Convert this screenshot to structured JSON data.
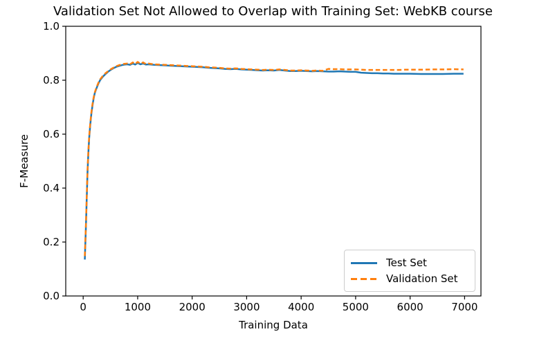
{
  "chart_data": {
    "type": "line",
    "title": "Validation Set Not Allowed to Overlap with Training Set: WebKB course",
    "xlabel": "Training Data",
    "ylabel": "F-Measure",
    "xlim": [
      -320,
      7300
    ],
    "ylim": [
      0.0,
      1.0
    ],
    "xticks": [
      0,
      1000,
      2000,
      3000,
      4000,
      5000,
      6000,
      7000
    ],
    "xtick_labels": [
      "0",
      "1000",
      "2000",
      "3000",
      "4000",
      "5000",
      "6000",
      "7000"
    ],
    "yticks": [
      0.0,
      0.2,
      0.4,
      0.6,
      0.8,
      1.0
    ],
    "ytick_labels": [
      "0.0",
      "0.2",
      "0.4",
      "0.6",
      "0.8",
      "1.0"
    ],
    "grid": false,
    "axis_color": "#000000",
    "legend": {
      "position": "lower right",
      "entries": [
        {
          "label": "Test Set",
          "color": "#1f77b4",
          "style": "solid"
        },
        {
          "label": "Validation Set",
          "color": "#ff7f0e",
          "style": "dashed"
        }
      ]
    },
    "series": [
      {
        "name": "Test Set",
        "color": "#1f77b4",
        "style": "solid",
        "points": [
          [
            30,
            0.135
          ],
          [
            50,
            0.255
          ],
          [
            65,
            0.36
          ],
          [
            80,
            0.46
          ],
          [
            95,
            0.53
          ],
          [
            110,
            0.585
          ],
          [
            130,
            0.635
          ],
          [
            150,
            0.675
          ],
          [
            170,
            0.705
          ],
          [
            190,
            0.73
          ],
          [
            210,
            0.75
          ],
          [
            235,
            0.765
          ],
          [
            260,
            0.778
          ],
          [
            285,
            0.79
          ],
          [
            310,
            0.8
          ],
          [
            360,
            0.813
          ],
          [
            410,
            0.823
          ],
          [
            460,
            0.832
          ],
          [
            510,
            0.839
          ],
          [
            560,
            0.845
          ],
          [
            610,
            0.85
          ],
          [
            660,
            0.853
          ],
          [
            710,
            0.856
          ],
          [
            760,
            0.858
          ],
          [
            810,
            0.859
          ],
          [
            860,
            0.857
          ],
          [
            910,
            0.862
          ],
          [
            955,
            0.858
          ],
          [
            1000,
            0.864
          ],
          [
            1050,
            0.859
          ],
          [
            1100,
            0.862
          ],
          [
            1150,
            0.858
          ],
          [
            1200,
            0.859
          ],
          [
            1300,
            0.857
          ],
          [
            1400,
            0.856
          ],
          [
            1500,
            0.855
          ],
          [
            1600,
            0.854
          ],
          [
            1700,
            0.853
          ],
          [
            1800,
            0.852
          ],
          [
            1900,
            0.851
          ],
          [
            2000,
            0.85
          ],
          [
            2100,
            0.849
          ],
          [
            2200,
            0.848
          ],
          [
            2300,
            0.846
          ],
          [
            2400,
            0.845
          ],
          [
            2500,
            0.844
          ],
          [
            2600,
            0.842
          ],
          [
            2700,
            0.841
          ],
          [
            2800,
            0.842
          ],
          [
            2900,
            0.84
          ],
          [
            3000,
            0.839
          ],
          [
            3100,
            0.838
          ],
          [
            3200,
            0.837
          ],
          [
            3300,
            0.836
          ],
          [
            3400,
            0.837
          ],
          [
            3500,
            0.836
          ],
          [
            3600,
            0.838
          ],
          [
            3700,
            0.836
          ],
          [
            3800,
            0.834
          ],
          [
            3900,
            0.834
          ],
          [
            4000,
            0.835
          ],
          [
            4100,
            0.834
          ],
          [
            4200,
            0.833
          ],
          [
            4300,
            0.834
          ],
          [
            4400,
            0.833
          ],
          [
            4500,
            0.832
          ],
          [
            4600,
            0.832
          ],
          [
            4700,
            0.833
          ],
          [
            4800,
            0.832
          ],
          [
            4900,
            0.831
          ],
          [
            5000,
            0.831
          ],
          [
            5100,
            0.828
          ],
          [
            5200,
            0.827
          ],
          [
            5300,
            0.826
          ],
          [
            5400,
            0.826
          ],
          [
            5500,
            0.825
          ],
          [
            5600,
            0.825
          ],
          [
            5700,
            0.824
          ],
          [
            5800,
            0.824
          ],
          [
            5900,
            0.824
          ],
          [
            6000,
            0.824
          ],
          [
            6200,
            0.823
          ],
          [
            6400,
            0.823
          ],
          [
            6600,
            0.823
          ],
          [
            6800,
            0.824
          ],
          [
            6980,
            0.824
          ]
        ]
      },
      {
        "name": "Validation Set",
        "color": "#ff7f0e",
        "style": "dashed",
        "points": [
          [
            30,
            0.148
          ],
          [
            50,
            0.262
          ],
          [
            65,
            0.368
          ],
          [
            80,
            0.468
          ],
          [
            95,
            0.537
          ],
          [
            110,
            0.592
          ],
          [
            130,
            0.641
          ],
          [
            150,
            0.68
          ],
          [
            170,
            0.71
          ],
          [
            190,
            0.734
          ],
          [
            210,
            0.753
          ],
          [
            235,
            0.768
          ],
          [
            260,
            0.781
          ],
          [
            285,
            0.793
          ],
          [
            310,
            0.803
          ],
          [
            360,
            0.816
          ],
          [
            410,
            0.826
          ],
          [
            460,
            0.834
          ],
          [
            510,
            0.841
          ],
          [
            560,
            0.847
          ],
          [
            610,
            0.852
          ],
          [
            660,
            0.856
          ],
          [
            710,
            0.859
          ],
          [
            760,
            0.861
          ],
          [
            810,
            0.862
          ],
          [
            860,
            0.859
          ],
          [
            910,
            0.866
          ],
          [
            955,
            0.86
          ],
          [
            1000,
            0.868
          ],
          [
            1050,
            0.861
          ],
          [
            1100,
            0.866
          ],
          [
            1150,
            0.86
          ],
          [
            1200,
            0.862
          ],
          [
            1300,
            0.859
          ],
          [
            1400,
            0.858
          ],
          [
            1500,
            0.857
          ],
          [
            1600,
            0.856
          ],
          [
            1700,
            0.855
          ],
          [
            1800,
            0.854
          ],
          [
            1900,
            0.853
          ],
          [
            2000,
            0.852
          ],
          [
            2100,
            0.851
          ],
          [
            2200,
            0.85
          ],
          [
            2300,
            0.848
          ],
          [
            2400,
            0.847
          ],
          [
            2500,
            0.846
          ],
          [
            2600,
            0.844
          ],
          [
            2700,
            0.843
          ],
          [
            2800,
            0.844
          ],
          [
            2900,
            0.842
          ],
          [
            3000,
            0.841
          ],
          [
            3100,
            0.84
          ],
          [
            3200,
            0.839
          ],
          [
            3300,
            0.838
          ],
          [
            3400,
            0.839
          ],
          [
            3500,
            0.838
          ],
          [
            3600,
            0.84
          ],
          [
            3700,
            0.838
          ],
          [
            3800,
            0.836
          ],
          [
            3900,
            0.836
          ],
          [
            4000,
            0.837
          ],
          [
            4100,
            0.836
          ],
          [
            4200,
            0.835
          ],
          [
            4300,
            0.836
          ],
          [
            4400,
            0.835
          ],
          [
            4500,
            0.842
          ],
          [
            4600,
            0.841
          ],
          [
            4700,
            0.841
          ],
          [
            4800,
            0.84
          ],
          [
            4900,
            0.84
          ],
          [
            5000,
            0.84
          ],
          [
            5100,
            0.839
          ],
          [
            5200,
            0.838
          ],
          [
            5300,
            0.838
          ],
          [
            5400,
            0.838
          ],
          [
            5500,
            0.838
          ],
          [
            5600,
            0.838
          ],
          [
            5700,
            0.838
          ],
          [
            5800,
            0.838
          ],
          [
            5900,
            0.839
          ],
          [
            6000,
            0.839
          ],
          [
            6200,
            0.839
          ],
          [
            6400,
            0.84
          ],
          [
            6600,
            0.84
          ],
          [
            6800,
            0.841
          ],
          [
            6980,
            0.84
          ]
        ]
      }
    ]
  }
}
